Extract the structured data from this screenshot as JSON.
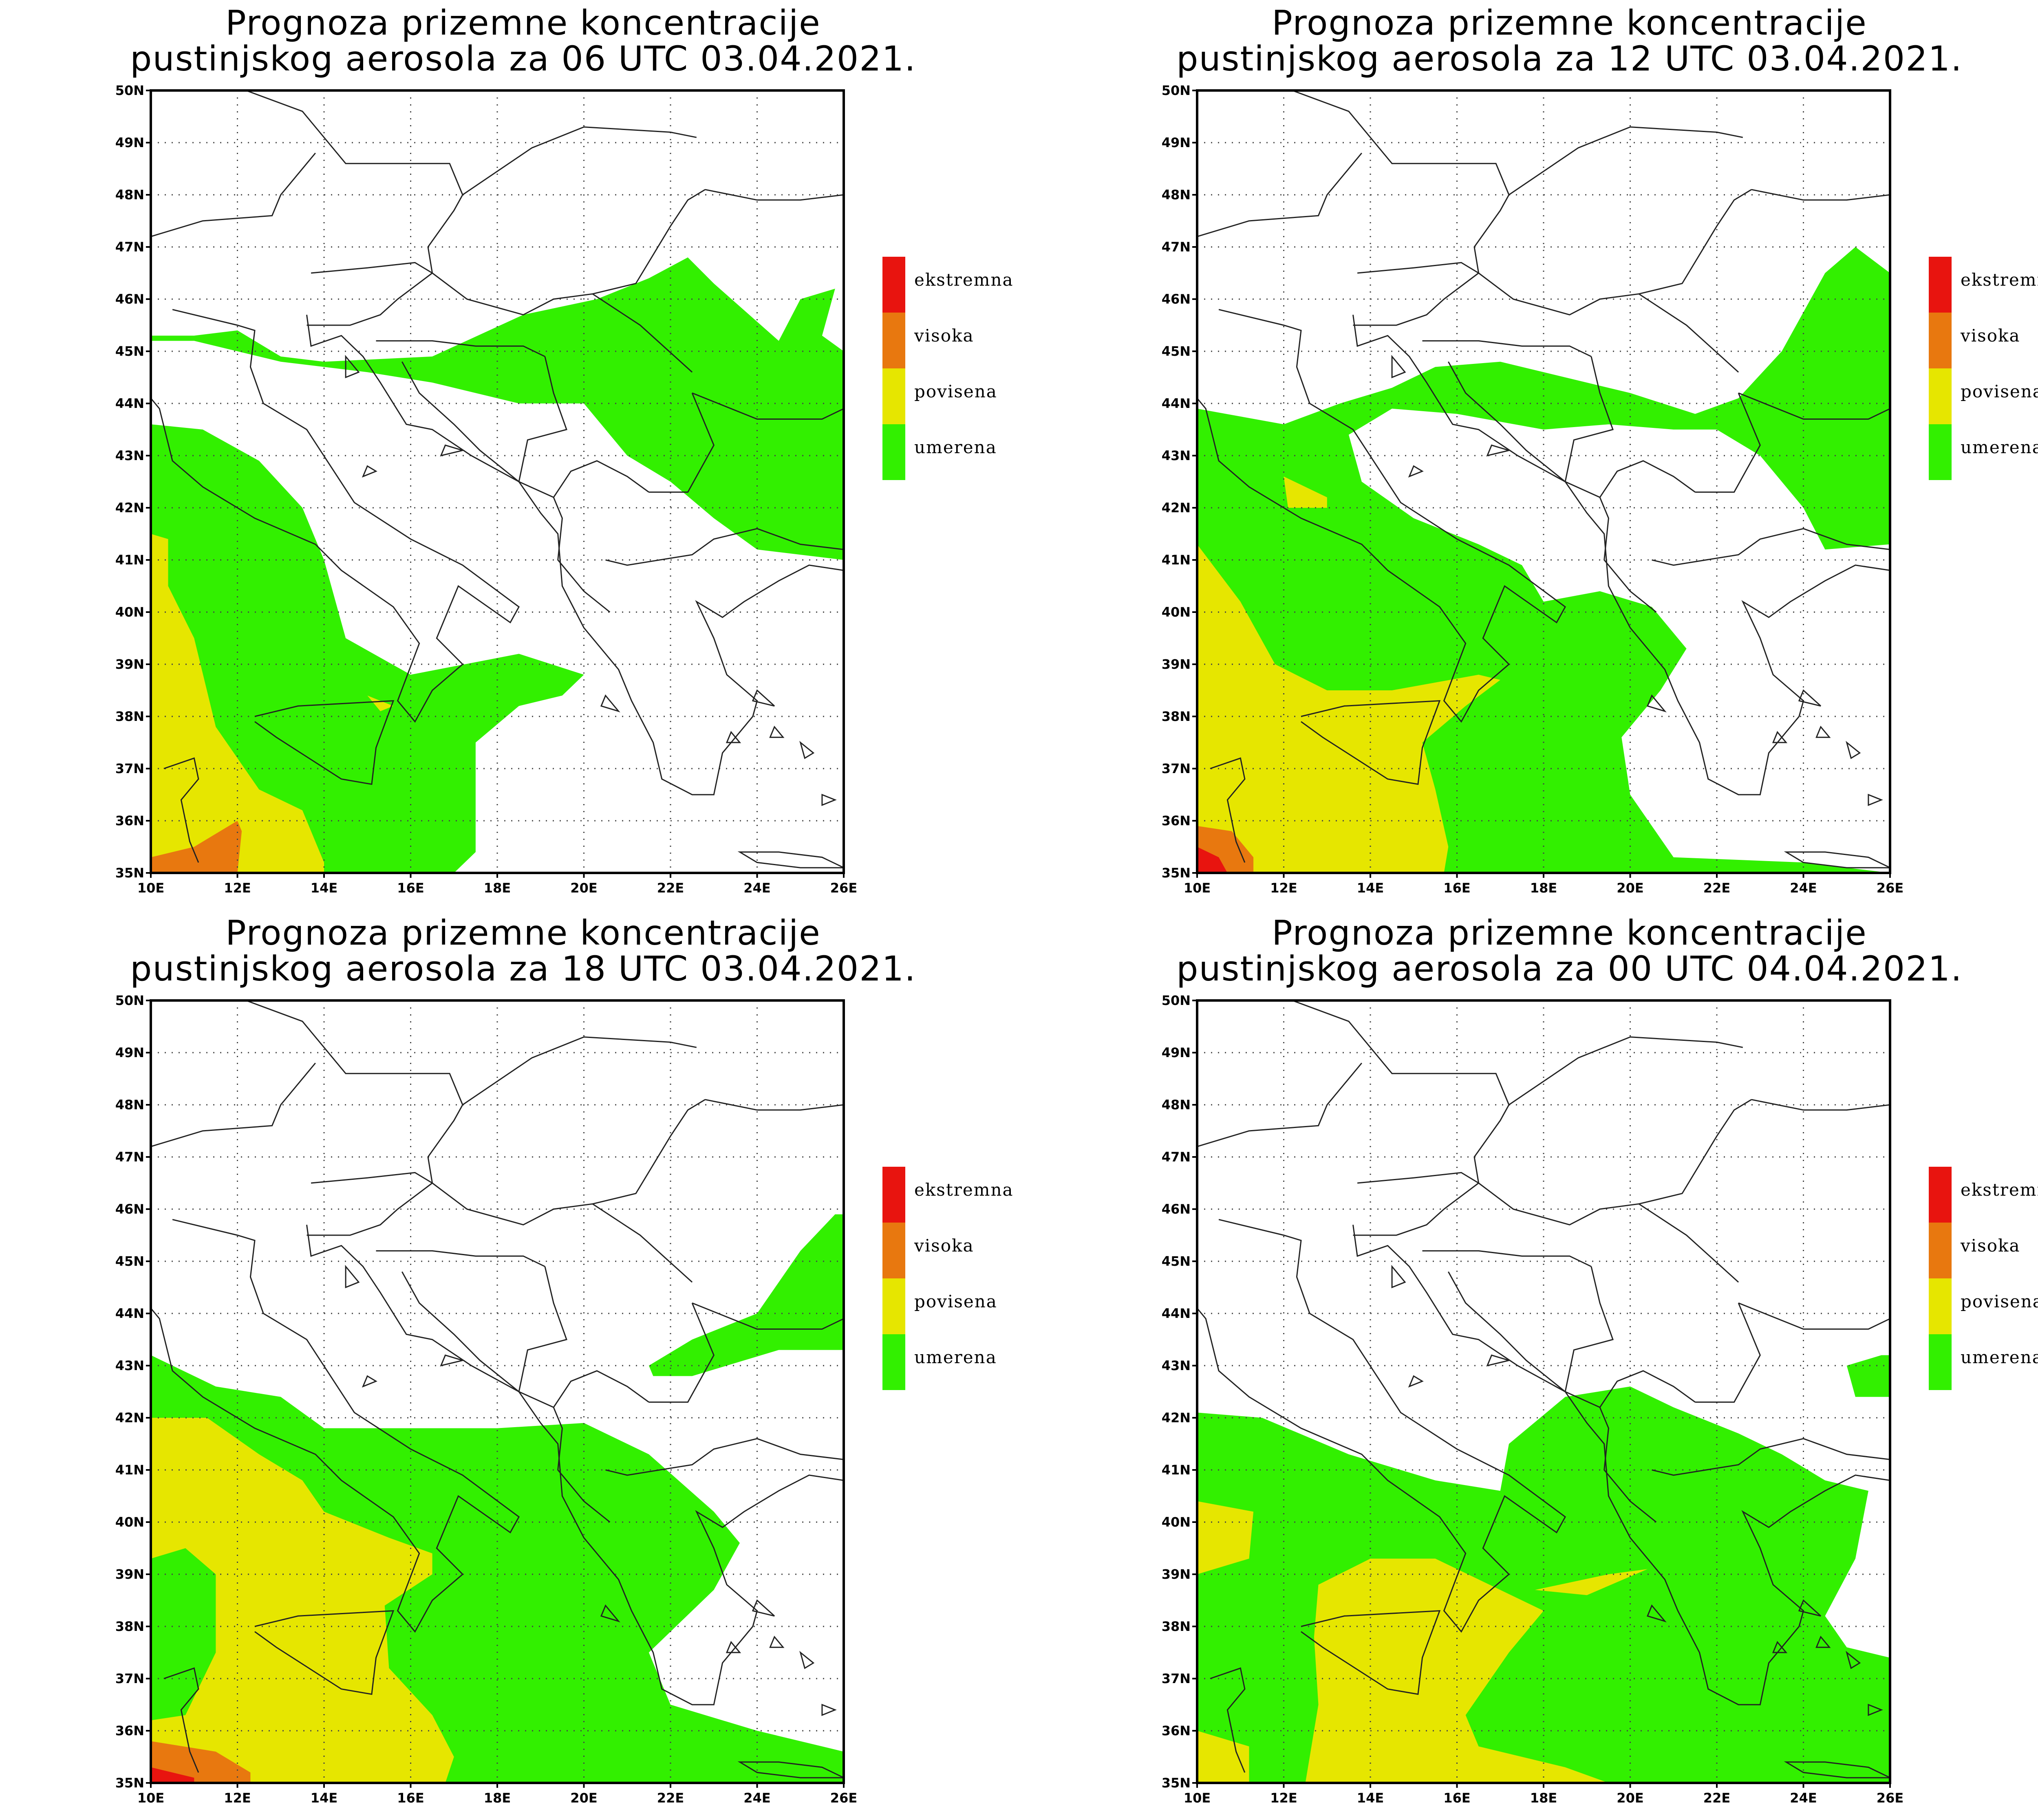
{
  "panels": [
    {
      "title_line1": "Prognoza prizemne koncentracije",
      "title_line2": "pustinjskog aerosola za 06 UTC 03.04.2021."
    },
    {
      "title_line1": "Prognoza prizemne koncentracije",
      "title_line2": "pustinjskog aerosola za 12 UTC 03.04.2021."
    },
    {
      "title_line1": "Prognoza prizemne koncentracije",
      "title_line2": "pustinjskog aerosola za 18 UTC 03.04.2021."
    },
    {
      "title_line1": "Prognoza prizemne koncentracije",
      "title_line2": "pustinjskog aerosola za 00 UTC 04.04.2021."
    }
  ],
  "legend": [
    {
      "label": "ekstremna",
      "color": "#e8140f"
    },
    {
      "label": "visoka",
      "color": "#e8780f"
    },
    {
      "label": "povisena",
      "color": "#e6e600"
    },
    {
      "label": "umerena",
      "color": "#32f000"
    }
  ],
  "axes": {
    "lon_labels": [
      "10E",
      "12E",
      "14E",
      "16E",
      "18E",
      "20E",
      "22E",
      "24E",
      "26E"
    ],
    "lat_labels": [
      "35N",
      "36N",
      "37N",
      "38N",
      "39N",
      "40N",
      "41N",
      "42N",
      "43N",
      "44N",
      "45N",
      "46N",
      "47N",
      "48N",
      "49N",
      "50N"
    ],
    "lon_range": [
      10,
      26
    ],
    "lat_range": [
      35,
      50
    ]
  },
  "colors": {
    "umerena": "#32f000",
    "povisena": "#e6e600",
    "visoka": "#e8780f",
    "ekstremna": "#e8140f"
  }
}
